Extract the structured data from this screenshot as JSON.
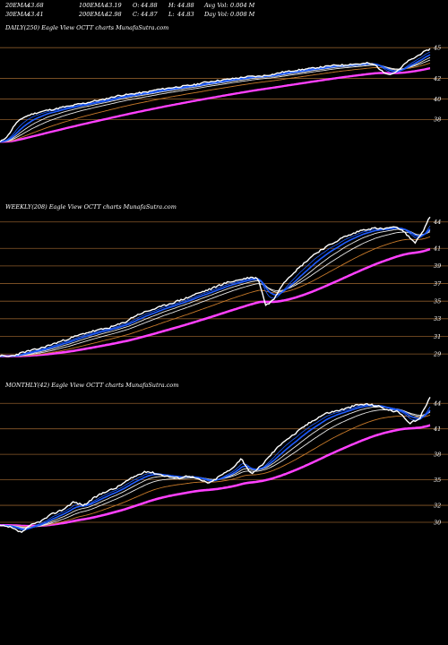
{
  "header": {
    "row1": [
      {
        "label": "20EMA:",
        "value": "43.68"
      },
      {
        "label": "100EMA:",
        "value": "43.19"
      },
      {
        "label": "O:",
        "value": "44.88"
      },
      {
        "label": "H:",
        "value": "44.88"
      },
      {
        "label": "Avg Vol:",
        "value": "0.004 M"
      }
    ],
    "row2": [
      {
        "label": "30EMA:",
        "value": "43.41"
      },
      {
        "label": "200EMA:",
        "value": "42.98"
      },
      {
        "label": "C:",
        "value": "44.87"
      },
      {
        "label": "L:",
        "value": "44.83"
      },
      {
        "label": "Day Vol:",
        "value": "0.008 M"
      }
    ]
  },
  "colors": {
    "background": "#000000",
    "price": "#ffffff",
    "ema_short": "#1e5cff",
    "ema_mid": "#e8e8e8",
    "ema_long": "#ff40ff",
    "ema_orange": "#c87a2a",
    "gridline": "#8a5a2a"
  },
  "chart_data": [
    {
      "type": "line",
      "panel": "daily",
      "label": "DAILY(250) Eagle  View  OCTT charts MunafaSutra.com",
      "y_ticks": [
        45,
        42,
        40,
        38
      ],
      "ylim": [
        35.5,
        46.5
      ],
      "close_series": [
        35.8,
        36.4,
        37.6,
        38.2,
        38.5,
        38.7,
        38.9,
        39.0,
        39.2,
        39.3,
        39.5,
        39.6,
        39.8,
        39.9,
        40.1,
        40.3,
        40.4,
        40.5,
        40.6,
        40.7,
        40.9,
        41.0,
        41.1,
        41.2,
        41.3,
        41.4,
        41.6,
        41.7,
        41.8,
        41.9,
        42.0,
        42.1,
        42.2,
        42.2,
        42.3,
        42.4,
        42.6,
        42.7,
        42.8,
        42.9,
        43.0,
        43.1,
        43.2,
        43.3,
        43.3,
        43.4,
        43.4,
        43.5,
        43.3,
        42.6,
        42.4,
        42.8,
        43.6,
        44.0,
        44.5,
        44.87
      ]
    },
    {
      "type": "line",
      "panel": "weekly",
      "label": "WEEKLY(208) Eagle  View  OCTT charts MunafaSutra.com",
      "y_ticks": [
        44,
        41,
        39,
        37,
        35,
        33,
        31,
        29
      ],
      "ylim": [
        28.3,
        45.2
      ],
      "close_series": [
        28.8,
        28.7,
        28.9,
        29.2,
        29.4,
        29.6,
        29.9,
        30.2,
        30.5,
        30.8,
        31.1,
        31.4,
        31.6,
        31.8,
        32.0,
        32.3,
        32.6,
        33.2,
        33.6,
        33.9,
        34.2,
        34.5,
        34.8,
        35.1,
        35.4,
        35.8,
        36.1,
        36.4,
        36.8,
        37.1,
        37.3,
        37.5,
        37.7,
        37.6,
        34.5,
        35.2,
        36.8,
        37.8,
        38.6,
        39.4,
        40.2,
        40.8,
        41.3,
        41.8,
        42.3,
        42.6,
        43.0,
        43.2,
        43.3,
        43.2,
        43.4,
        43.3,
        42.6,
        41.6,
        42.8,
        44.6
      ]
    },
    {
      "type": "line",
      "panel": "monthly",
      "label": "MONTHLY(42) Eagle  View  OCTT charts MunafaSutra.com",
      "y_ticks": [
        44,
        41,
        38,
        35,
        32,
        30
      ],
      "ylim": [
        28.0,
        45.5
      ],
      "close_series": [
        29.6,
        29.4,
        28.8,
        29.7,
        30.2,
        31.0,
        31.5,
        32.4,
        32.0,
        32.9,
        33.6,
        34.0,
        34.8,
        35.5,
        36.0,
        35.7,
        35.4,
        35.2,
        35.5,
        35.0,
        34.6,
        35.5,
        36.2,
        37.5,
        35.6,
        36.8,
        38.2,
        39.5,
        40.3,
        41.3,
        42.1,
        42.8,
        43.1,
        43.4,
        43.8,
        43.9,
        43.7,
        43.2,
        43.0,
        41.6,
        42.2,
        44.8
      ]
    }
  ]
}
